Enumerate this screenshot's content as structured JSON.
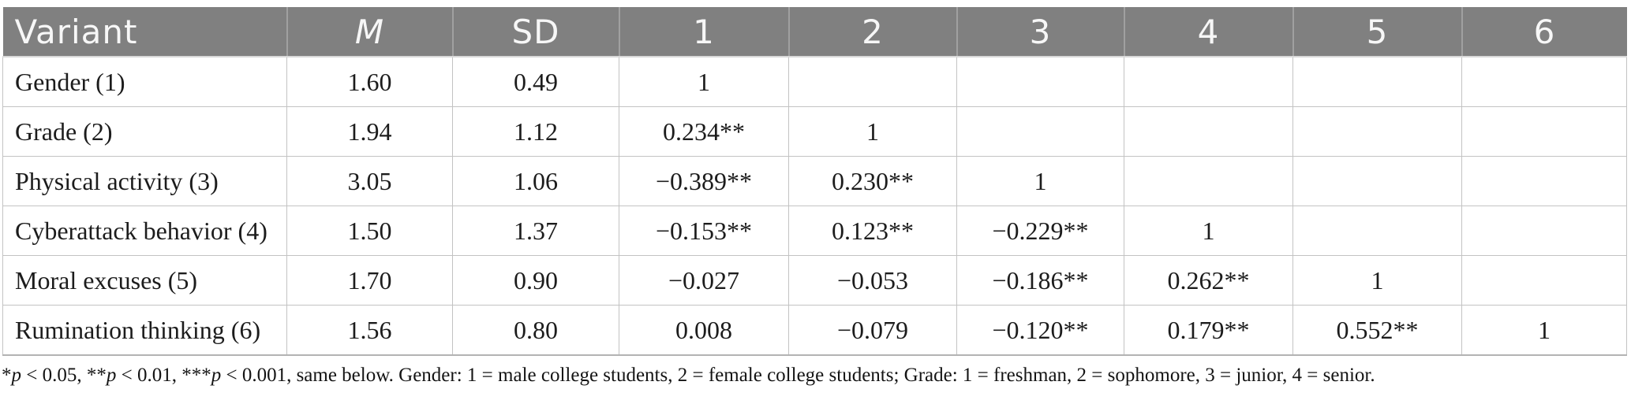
{
  "table": {
    "columns": [
      "Variant",
      "M",
      "SD",
      "1",
      "2",
      "3",
      "4",
      "5",
      "6"
    ],
    "rows": [
      [
        "Gender (1)",
        "1.60",
        "0.49",
        "1",
        "",
        "",
        "",
        "",
        ""
      ],
      [
        "Grade (2)",
        "1.94",
        "1.12",
        "0.234**",
        "1",
        "",
        "",
        "",
        ""
      ],
      [
        "Physical activity (3)",
        "3.05",
        "1.06",
        "−0.389**",
        "0.230**",
        "1",
        "",
        "",
        ""
      ],
      [
        "Cyberattack behavior (4)",
        "1.50",
        "1.37",
        "−0.153**",
        "0.123**",
        "−0.229**",
        "1",
        "",
        ""
      ],
      [
        "Moral excuses (5)",
        "1.70",
        "0.90",
        "−0.027",
        "−0.053",
        "−0.186**",
        "0.262**",
        "1",
        ""
      ],
      [
        "Rumination thinking (6)",
        "1.56",
        "0.80",
        "0.008",
        "−0.079",
        "−0.120**",
        "0.179**",
        "0.552**",
        "1"
      ]
    ]
  },
  "footnote": {
    "segments": [
      {
        "t": "*"
      },
      {
        "t": "p",
        "i": true
      },
      {
        "t": " < 0.05, **"
      },
      {
        "t": "p",
        "i": true
      },
      {
        "t": " < 0.01, ***"
      },
      {
        "t": "p",
        "i": true
      },
      {
        "t": " < 0.001, same below. Gender: 1 = male college students, 2 = female college students; Grade: 1 = freshman, 2 = sophomore, 3 = junior, 4 = senior."
      }
    ]
  },
  "colors": {
    "header_background": "#808080",
    "header_text": "#f7f7f7",
    "grid_line": "#c3c3c3",
    "body_text": "#1c1c1c"
  }
}
